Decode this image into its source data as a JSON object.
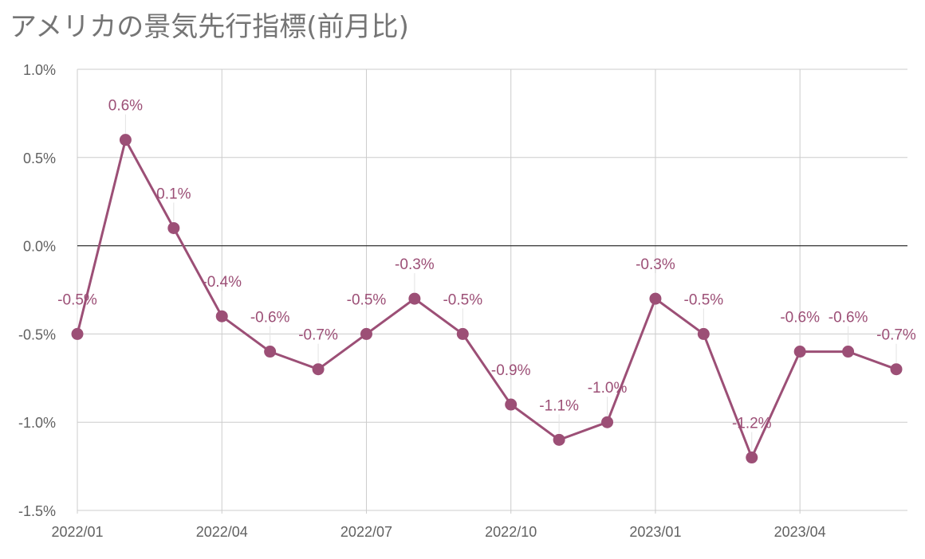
{
  "chart_data": {
    "type": "line",
    "title": "アメリカの景気先行指標(前月比)",
    "x": [
      "2022/01",
      "2022/02",
      "2022/03",
      "2022/04",
      "2022/05",
      "2022/06",
      "2022/07",
      "2022/08",
      "2022/09",
      "2022/10",
      "2022/11",
      "2022/12",
      "2023/01",
      "2023/02",
      "2023/03",
      "2023/04",
      "2023/05",
      "2023/06"
    ],
    "values": [
      -0.5,
      0.6,
      0.1,
      -0.4,
      -0.6,
      -0.7,
      -0.5,
      -0.3,
      -0.5,
      -0.9,
      -1.1,
      -1.0,
      -0.3,
      -0.5,
      -1.2,
      -0.6,
      -0.6,
      -0.7
    ],
    "data_labels": [
      "-0.5%",
      "0.6%",
      "0.1%",
      "-0.4%",
      "-0.6%",
      "-0.7%",
      "-0.5%",
      "-0.3%",
      "-0.5%",
      "-0.9%",
      "-1.1%",
      "-1.0%",
      "-0.3%",
      "-0.5%",
      "-1.2%",
      "-0.6%",
      "-0.6%",
      "-0.7%"
    ],
    "x_tick_labels": [
      "2022/01",
      "2022/04",
      "2022/07",
      "2022/10",
      "2023/01",
      "2023/04"
    ],
    "y_ticks": [
      1.0,
      0.5,
      0.0,
      -0.5,
      -1.0,
      -1.5
    ],
    "y_tick_labels": [
      "1.0%",
      "0.5%",
      "0.0%",
      "-0.5%",
      "-1.0%",
      "-1.5%"
    ],
    "ylim": [
      -1.5,
      1.0
    ],
    "xlabel": "",
    "ylabel": "",
    "grid": true,
    "legend": "none",
    "line_color": "#9c4f76",
    "grid_color": "#cccccc",
    "zero_line_color": "#333333"
  }
}
